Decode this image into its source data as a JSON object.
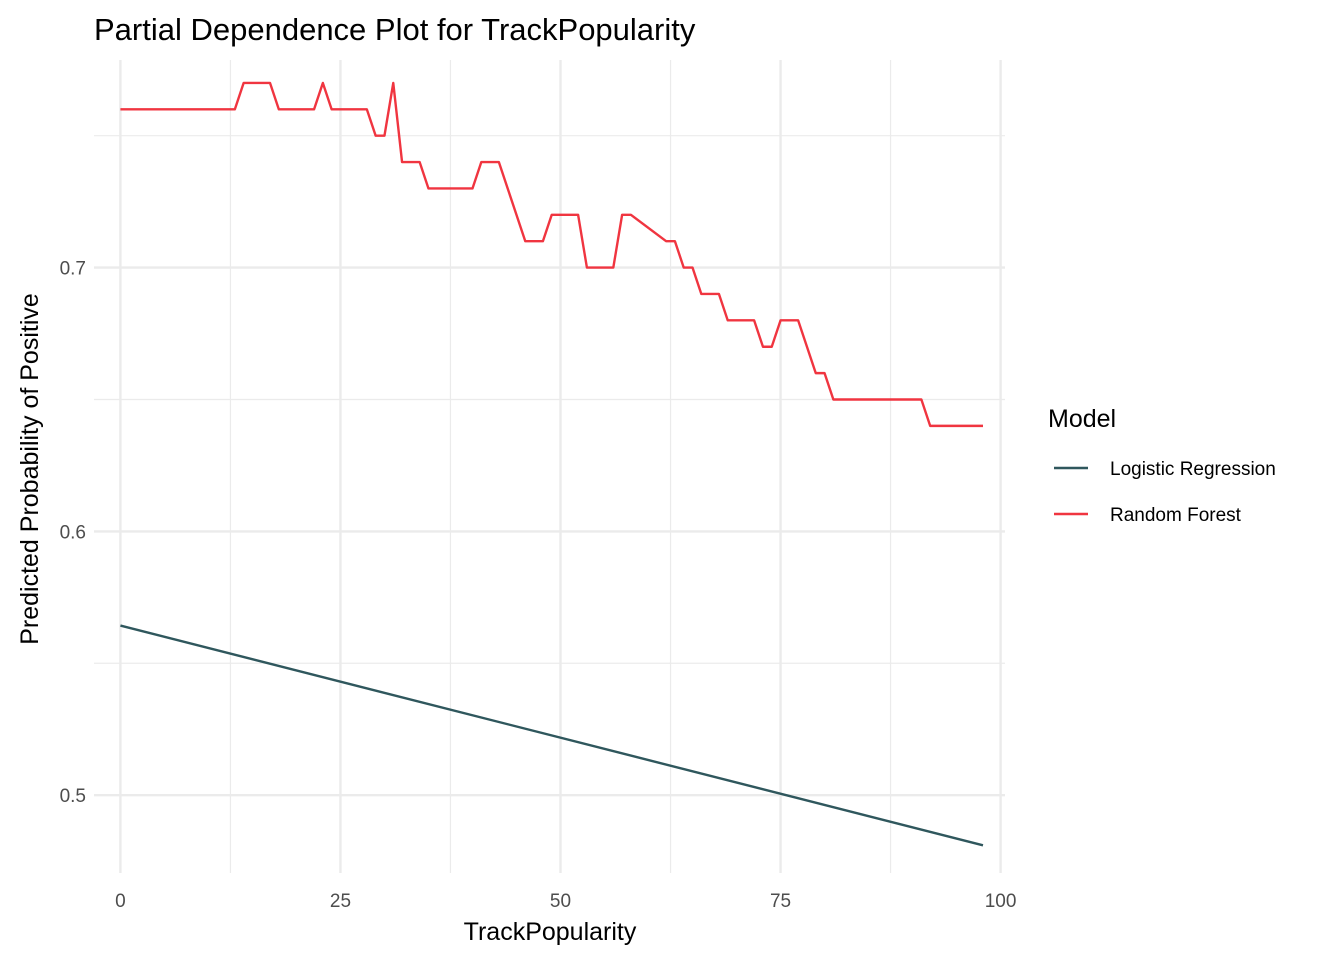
{
  "chart_data": {
    "type": "line",
    "title": "Partial Dependence Plot for TrackPopularity",
    "xlabel": "TrackPopularity",
    "ylabel": "Predicted Probability of Positive",
    "xlim": [
      -3,
      100.5
    ],
    "ylim": [
      0.4705,
      0.7787
    ],
    "x_ticks": [
      0,
      25,
      50,
      75,
      100
    ],
    "x_tick_labels": [
      "0",
      "25",
      "50",
      "75",
      "100"
    ],
    "x_minor_ticks": [
      12.5,
      37.5,
      62.5,
      87.5
    ],
    "y_ticks": [
      0.5,
      0.6,
      0.7
    ],
    "y_tick_labels": [
      "0.5",
      "0.6",
      "0.7"
    ],
    "y_minor_ticks": [
      0.55,
      0.65,
      0.75
    ],
    "grid": true,
    "legend": {
      "title": "Model",
      "position": "right"
    },
    "series": [
      {
        "name": "Logistic Regression",
        "color": "#2f575d",
        "x": [
          0,
          98
        ],
        "y": [
          0.5643,
          0.481
        ]
      },
      {
        "name": "Random Forest",
        "color": "#f03540",
        "x": [
          0,
          13,
          14,
          17,
          18,
          22,
          23,
          24,
          28,
          29,
          30,
          31,
          32,
          34,
          35,
          36,
          38,
          40,
          41,
          43,
          44,
          45,
          46,
          48,
          49,
          52,
          53,
          55,
          56,
          57,
          58,
          62,
          63,
          64,
          65,
          66,
          67,
          68,
          69,
          71,
          72,
          73,
          74,
          75,
          77,
          78,
          79,
          80,
          81,
          90,
          91,
          92,
          98
        ],
        "y": [
          0.76,
          0.76,
          0.77,
          0.77,
          0.76,
          0.76,
          0.77,
          0.76,
          0.76,
          0.75,
          0.75,
          0.77,
          0.74,
          0.74,
          0.73,
          0.73,
          0.73,
          0.73,
          0.74,
          0.74,
          0.73,
          0.72,
          0.71,
          0.71,
          0.72,
          0.72,
          0.7,
          0.7,
          0.7,
          0.72,
          0.72,
          0.71,
          0.71,
          0.7,
          0.7,
          0.69,
          0.69,
          0.69,
          0.68,
          0.68,
          0.68,
          0.67,
          0.67,
          0.68,
          0.68,
          0.67,
          0.66,
          0.66,
          0.65,
          0.65,
          0.65,
          0.64,
          0.64
        ]
      }
    ]
  }
}
